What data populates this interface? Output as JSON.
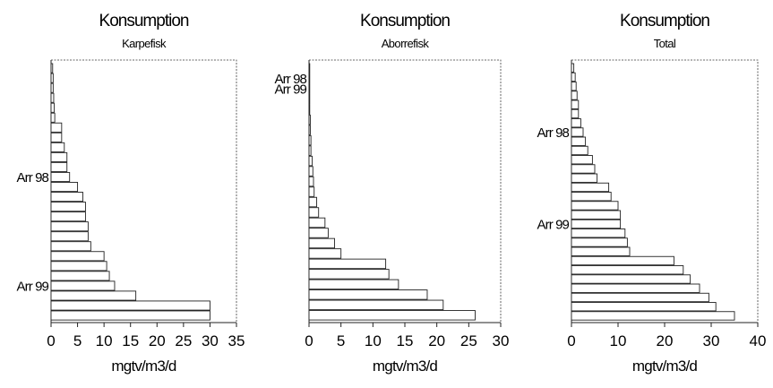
{
  "chart_data": [
    {
      "type": "bar",
      "orientation": "horizontal",
      "title": "Konsumption",
      "subtitle": "Karpefisk",
      "xlabel": "mgtv/m3/d",
      "xlim": [
        0,
        35
      ],
      "xticks": [
        "0",
        "5",
        "10",
        "15",
        "20",
        "25",
        "30",
        "35"
      ],
      "values": [
        0.3,
        0.4,
        0.4,
        0.5,
        0.6,
        0.7,
        2.0,
        2.0,
        2.5,
        3.0,
        3.0,
        3.5,
        5.0,
        6.0,
        6.5,
        6.5,
        7.0,
        7.0,
        7.5,
        10.0,
        10.5,
        11.0,
        12.0,
        16.0,
        30.0,
        30.0
      ],
      "annotations": [
        {
          "text": "Arr 98",
          "bar_index": 11
        },
        {
          "text": "Arr 99",
          "bar_index": 22
        }
      ]
    },
    {
      "type": "bar",
      "orientation": "horizontal",
      "title": "Konsumption",
      "subtitle": "Aborrefisk",
      "xlabel": "mgtv/m3/d",
      "xlim": [
        0,
        30
      ],
      "xticks": [
        "0",
        "5",
        "10",
        "15",
        "20",
        "25",
        "30"
      ],
      "values": [
        0.1,
        0.1,
        0.1,
        0.1,
        0.1,
        0.2,
        0.2,
        0.3,
        0.3,
        0.5,
        0.6,
        0.7,
        0.8,
        1.2,
        1.5,
        2.5,
        3.0,
        4.0,
        5.0,
        12.0,
        12.5,
        14.0,
        18.5,
        21.0,
        26.0
      ],
      "annotations": [
        {
          "text": "Arr 98",
          "bar_index": 1
        },
        {
          "text": "Arr 99",
          "bar_index": 2
        }
      ]
    },
    {
      "type": "bar",
      "orientation": "horizontal",
      "title": "Konsumption",
      "subtitle": "Total",
      "xlabel": "mgtv/m3/d",
      "xlim": [
        0,
        40
      ],
      "xticks": [
        "0",
        "10",
        "20",
        "30",
        "40"
      ],
      "values": [
        0.5,
        0.8,
        1.0,
        1.2,
        1.5,
        1.5,
        2.0,
        2.5,
        3.0,
        3.5,
        4.5,
        5.0,
        5.5,
        8.0,
        8.5,
        10.0,
        10.5,
        10.5,
        11.5,
        12.0,
        12.5,
        22.0,
        24.0,
        25.5,
        27.5,
        29.5,
        31.0,
        35.0
      ],
      "annotations": [
        {
          "text": "Arr 98",
          "bar_index": 7
        },
        {
          "text": "Arr 99",
          "bar_index": 17
        }
      ]
    }
  ]
}
